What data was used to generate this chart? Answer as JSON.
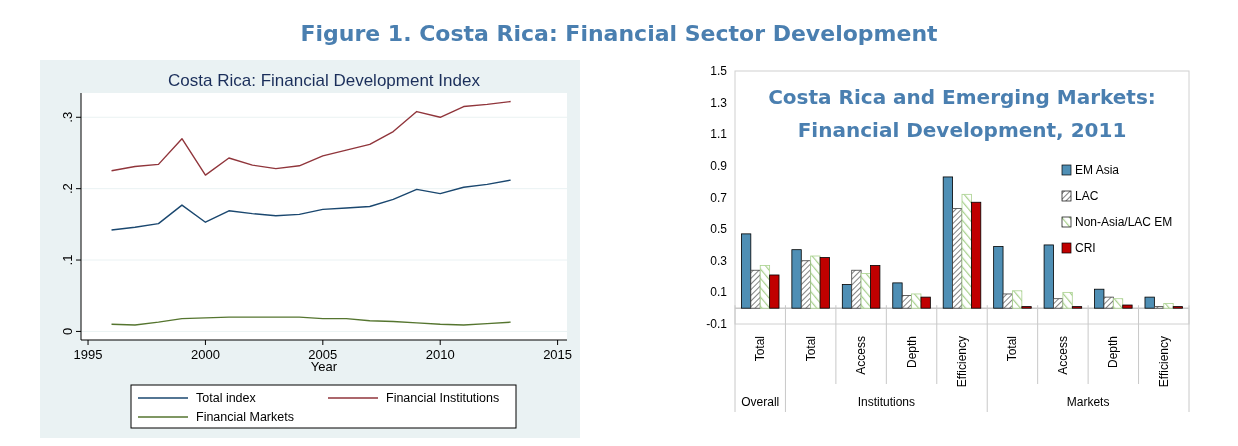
{
  "chart_data": [
    {
      "type": "other",
      "title": "Figure 1. Costa Rica: Financial Sector Development"
    },
    {
      "type": "line",
      "title": "Costa Rica: Financial Development Index",
      "xlabel": "Year",
      "x": [
        1996,
        1997,
        1998,
        1999,
        2000,
        2001,
        2002,
        2003,
        2004,
        2005,
        2006,
        2007,
        2008,
        2009,
        2010,
        2011,
        2012,
        2013
      ],
      "series": [
        {
          "name": "Total index",
          "color": "#1a476f",
          "values": [
            0.142,
            0.146,
            0.151,
            0.177,
            0.153,
            0.169,
            0.165,
            0.162,
            0.164,
            0.171,
            0.173,
            0.175,
            0.185,
            0.199,
            0.193,
            0.202,
            0.206,
            0.212
          ]
        },
        {
          "name": "Financial Institutions",
          "color": "#90353b",
          "values": [
            0.225,
            0.231,
            0.234,
            0.27,
            0.219,
            0.243,
            0.233,
            0.228,
            0.232,
            0.246,
            0.254,
            0.262,
            0.28,
            0.308,
            0.3,
            0.315,
            0.318,
            0.322
          ]
        },
        {
          "name": "Financial Markets",
          "color": "#55752f",
          "values": [
            0.01,
            0.009,
            0.013,
            0.018,
            0.019,
            0.02,
            0.02,
            0.02,
            0.02,
            0.018,
            0.018,
            0.015,
            0.014,
            0.012,
            0.01,
            0.009,
            0.011,
            0.013
          ]
        }
      ],
      "xlim": [
        1994.7,
        2015.4
      ],
      "ylim": [
        -0.012,
        0.334
      ],
      "xticks": [
        1995,
        2000,
        2005,
        2010,
        2015
      ],
      "yticks": [
        0,
        {
          "value": 0.1,
          "label": ".1"
        },
        {
          "value": 0.2,
          "label": ".2"
        },
        {
          "value": 0.3,
          "label": ".3"
        }
      ],
      "grid": "y",
      "legend": "bottom"
    },
    {
      "type": "bar",
      "title": "Costa Rica and Emerging Markets:\nFinancial Development, 2011",
      "categories": [
        "Total",
        "Total",
        "Access",
        "Depth",
        "Efficiency",
        "Total",
        "Access",
        "Depth",
        "Efficiency"
      ],
      "series": [
        {
          "name": "EM Asia",
          "color": "#4f8fb5",
          "values": [
            0.47,
            0.37,
            0.15,
            0.16,
            0.83,
            0.39,
            0.4,
            0.12,
            0.07
          ]
        },
        {
          "name": "LAC",
          "color": "#404040",
          "values": [
            0.24,
            0.3,
            0.24,
            0.08,
            0.63,
            0.09,
            0.06,
            0.07,
            0.01
          ]
        },
        {
          "name": "Non-Asia/LAC EM",
          "color": "#a9d18e",
          "values": [
            0.27,
            0.33,
            0.22,
            0.09,
            0.72,
            0.11,
            0.1,
            0.06,
            0.03
          ]
        },
        {
          "name": "CRI",
          "color": "#c00000",
          "values": [
            0.21,
            0.32,
            0.27,
            0.07,
            0.67,
            0.01,
            0.01,
            0.02,
            0.01
          ]
        }
      ],
      "ylim": [
        -0.1,
        1.5
      ],
      "yticks": [
        -0.1,
        0.1,
        0.3,
        0.5,
        0.7,
        0.9,
        1.1,
        1.3,
        1.5
      ],
      "legend": "right",
      "annotations": [
        "Overall",
        "Institutions",
        "Markets"
      ]
    }
  ]
}
